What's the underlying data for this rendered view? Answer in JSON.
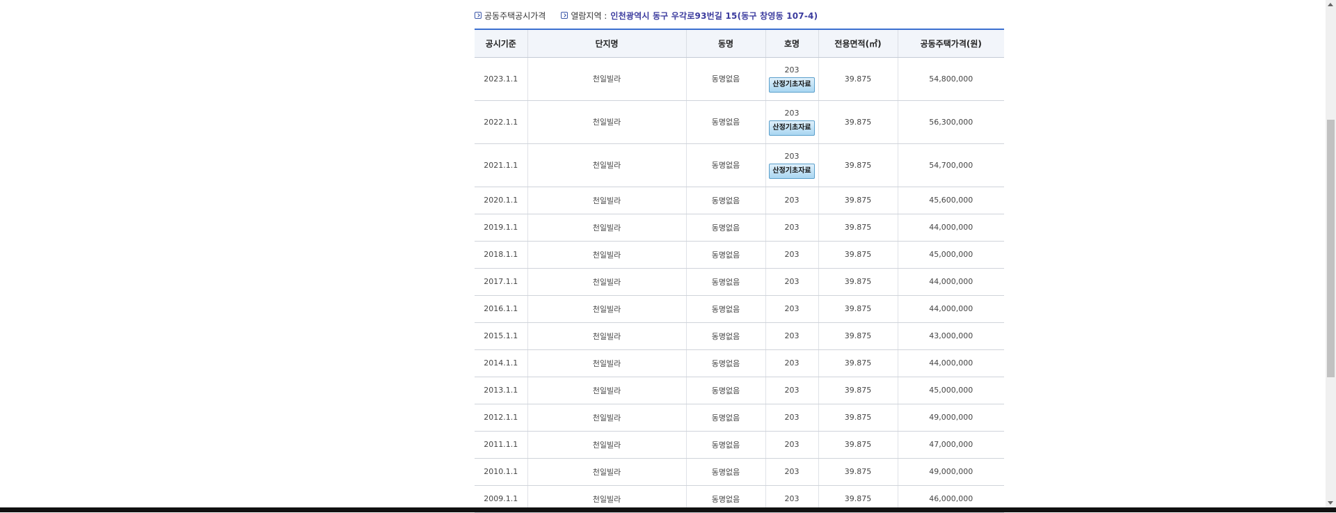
{
  "header": {
    "section_title": "공동주택공시가격",
    "region_label": "열람지역 :",
    "region_address": "인천광역시 동구 우각로93번길 15(동구 창영동 107-4)"
  },
  "table": {
    "columns": [
      "공시기준",
      "단지명",
      "동명",
      "호명",
      "전용면적(㎡)",
      "공동주택가격(원)"
    ],
    "button_label": "산정기초자료",
    "rows": [
      {
        "date": "2023.1.1",
        "complex": "천일빌라",
        "dong": "동명없음",
        "ho": "203",
        "area": "39.875",
        "price": "54,800,000",
        "has_button": true
      },
      {
        "date": "2022.1.1",
        "complex": "천일빌라",
        "dong": "동명없음",
        "ho": "203",
        "area": "39.875",
        "price": "56,300,000",
        "has_button": true
      },
      {
        "date": "2021.1.1",
        "complex": "천일빌라",
        "dong": "동명없음",
        "ho": "203",
        "area": "39.875",
        "price": "54,700,000",
        "has_button": true
      },
      {
        "date": "2020.1.1",
        "complex": "천일빌라",
        "dong": "동명없음",
        "ho": "203",
        "area": "39.875",
        "price": "45,600,000",
        "has_button": false
      },
      {
        "date": "2019.1.1",
        "complex": "천일빌라",
        "dong": "동명없음",
        "ho": "203",
        "area": "39.875",
        "price": "44,000,000",
        "has_button": false
      },
      {
        "date": "2018.1.1",
        "complex": "천일빌라",
        "dong": "동명없음",
        "ho": "203",
        "area": "39.875",
        "price": "45,000,000",
        "has_button": false
      },
      {
        "date": "2017.1.1",
        "complex": "천일빌라",
        "dong": "동명없음",
        "ho": "203",
        "area": "39.875",
        "price": "44,000,000",
        "has_button": false
      },
      {
        "date": "2016.1.1",
        "complex": "천일빌라",
        "dong": "동명없음",
        "ho": "203",
        "area": "39.875",
        "price": "44,000,000",
        "has_button": false
      },
      {
        "date": "2015.1.1",
        "complex": "천일빌라",
        "dong": "동명없음",
        "ho": "203",
        "area": "39.875",
        "price": "43,000,000",
        "has_button": false
      },
      {
        "date": "2014.1.1",
        "complex": "천일빌라",
        "dong": "동명없음",
        "ho": "203",
        "area": "39.875",
        "price": "44,000,000",
        "has_button": false
      },
      {
        "date": "2013.1.1",
        "complex": "천일빌라",
        "dong": "동명없음",
        "ho": "203",
        "area": "39.875",
        "price": "45,000,000",
        "has_button": false
      },
      {
        "date": "2012.1.1",
        "complex": "천일빌라",
        "dong": "동명없음",
        "ho": "203",
        "area": "39.875",
        "price": "49,000,000",
        "has_button": false
      },
      {
        "date": "2011.1.1",
        "complex": "천일빌라",
        "dong": "동명없음",
        "ho": "203",
        "area": "39.875",
        "price": "47,000,000",
        "has_button": false
      },
      {
        "date": "2010.1.1",
        "complex": "천일빌라",
        "dong": "동명없음",
        "ho": "203",
        "area": "39.875",
        "price": "49,000,000",
        "has_button": false
      },
      {
        "date": "2009.1.1",
        "complex": "천일빌라",
        "dong": "동명없음",
        "ho": "203",
        "area": "39.875",
        "price": "46,000,000",
        "has_button": false
      }
    ]
  },
  "colors": {
    "accent_line": "#3a6fd0",
    "address_text": "#3b3b9e",
    "button_bg": "#a9d6f1"
  }
}
